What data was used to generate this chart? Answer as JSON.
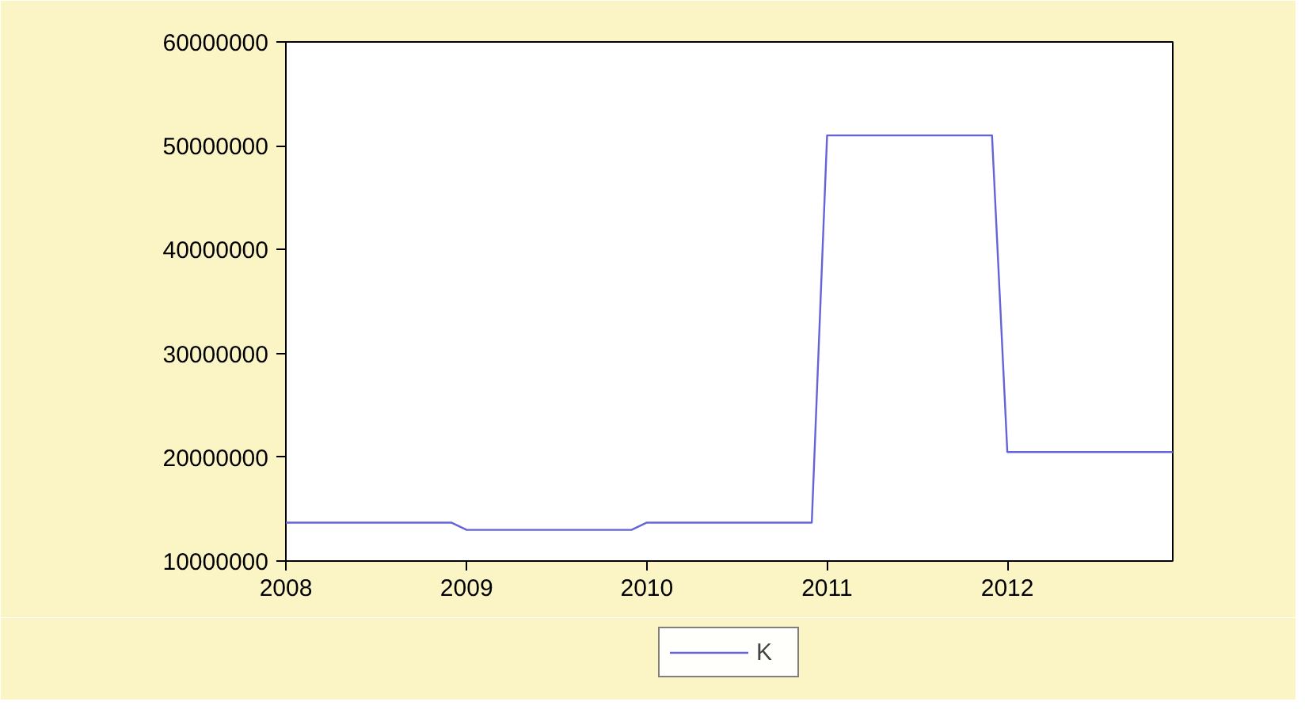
{
  "chart_data": {
    "type": "line",
    "x": [
      "2008-01",
      "2008-12",
      "2009-01",
      "2009-12",
      "2010-01",
      "2010-12",
      "2011-01",
      "2011-12",
      "2012-01",
      "2012-12"
    ],
    "series": [
      {
        "name": "K",
        "color": "#6464d8",
        "values": [
          13700000,
          13700000,
          13000000,
          13000000,
          13700000,
          13700000,
          51000000,
          51000000,
          20500000,
          20500000
        ]
      }
    ],
    "xlim": [
      "2008-01",
      "2012-12"
    ],
    "xticks": [
      {
        "value": "2008-01",
        "label": "2008"
      },
      {
        "value": "2009-01",
        "label": "2009"
      },
      {
        "value": "2010-01",
        "label": "2010"
      },
      {
        "value": "2011-01",
        "label": "2011"
      },
      {
        "value": "2012-01",
        "label": "2012"
      }
    ],
    "ylim": [
      10000000,
      60000000
    ],
    "yticks": [
      10000000,
      20000000,
      30000000,
      40000000,
      50000000,
      60000000
    ],
    "grid": false,
    "legend": "bottom",
    "marker": "none",
    "line_style": "solid"
  }
}
